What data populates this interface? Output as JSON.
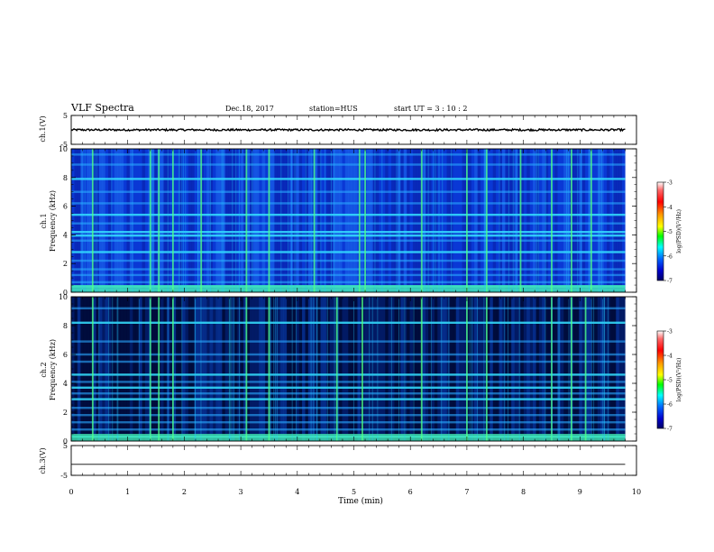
{
  "header": {
    "title": "VLF Spectra",
    "date": "Dec.18, 2017",
    "station": "station=HUS",
    "start": "start  UT =  3 : 10 : 2"
  },
  "colorbar": {
    "label": "log(PSD)(V²/Hz)",
    "ticks": [
      -3,
      -4,
      -5,
      -6,
      -7
    ],
    "colors": [
      "#ffffff",
      "#ff5a5a",
      "#ff0000",
      "#ff9900",
      "#ffff00",
      "#00ff00",
      "#00ffff",
      "#0066ff",
      "#0000cc",
      "#000066"
    ]
  },
  "chart_data": [
    {
      "type": "line",
      "name": "ch.1 waveform",
      "ylabel": "ch.1(V)",
      "ylim": [
        -5,
        5
      ],
      "yticks": [
        5,
        -5
      ],
      "x_range": [
        0,
        9.8
      ],
      "baseline": 0,
      "amplitude": 0.35
    },
    {
      "type": "heatmap",
      "ylabel_top": "ch.1",
      "ylabel": "Frequency (kHz)",
      "ylim": [
        0,
        10
      ],
      "yticks": [
        0,
        2,
        4,
        6,
        8,
        10
      ],
      "x_range": [
        0,
        9.8
      ],
      "background_log_psd": -6.2,
      "persistent_lines_khz": [
        0.2,
        0.4,
        0.7,
        1.2,
        1.6,
        2.2,
        2.8,
        3.6,
        3.95,
        4.2,
        4.8,
        5.4,
        6.2,
        7.0,
        7.9,
        8.9,
        9.6
      ],
      "bursts_min": [
        0.38,
        1.4,
        1.55,
        1.8,
        2.3,
        3.1,
        3.5,
        4.3,
        5.1,
        5.2,
        6.2,
        7.0,
        7.35,
        7.95,
        8.5,
        8.85,
        9.2
      ]
    },
    {
      "type": "heatmap",
      "ylabel_top": "ch.2",
      "ylabel": "Frequency (kHz)",
      "ylim": [
        0,
        10
      ],
      "yticks": [
        0,
        2,
        4,
        6,
        8,
        10
      ],
      "x_range": [
        0,
        9.8
      ],
      "background_log_psd": -6.8,
      "persistent_lines_khz": [
        0.3,
        0.8,
        1.3,
        1.8,
        2.3,
        2.9,
        3.3,
        3.7,
        4.1,
        4.6,
        5.5,
        6.0,
        6.9,
        8.2,
        9.2
      ],
      "bursts_min": [
        0.38,
        1.4,
        1.55,
        1.8,
        3.1,
        3.5,
        4.7,
        5.15,
        6.2,
        7.0,
        7.35,
        8.5,
        8.85,
        9.1
      ]
    },
    {
      "type": "line",
      "name": "ch.3 waveform",
      "ylabel": "ch.3(V)",
      "ylim": [
        -5,
        5
      ],
      "yticks": [
        5,
        -5
      ],
      "x_range": [
        0,
        9.8
      ],
      "baseline": -1.3,
      "amplitude": 0
    }
  ],
  "xaxis": {
    "label": "Time (min)",
    "ticks": [
      0,
      1,
      2,
      3,
      4,
      5,
      6,
      7,
      8,
      9,
      10
    ],
    "xlim": [
      0,
      10
    ]
  }
}
